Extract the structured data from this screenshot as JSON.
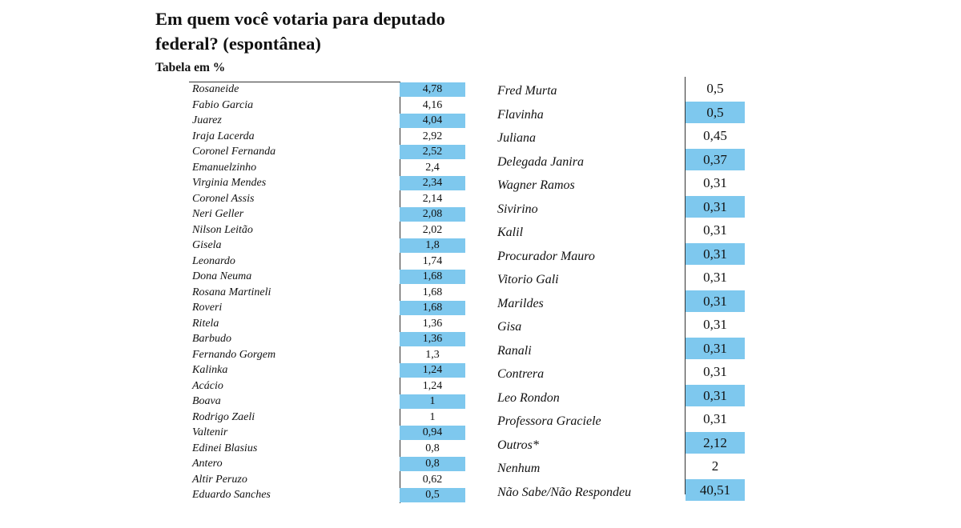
{
  "title": "Em quem você votaria para deputado federal? (espontânea)",
  "subtitle": "Tabela em %",
  "colors": {
    "highlight": "#7ec8ee",
    "text": "#111111",
    "background": "#ffffff"
  },
  "chart_data": {
    "type": "table",
    "title": "Em quem você votaria para deputado federal? (espontânea)",
    "subtitle": "Tabela em %",
    "columns": [
      {
        "rows": [
          {
            "name": "Rosaneide",
            "value": "4,78",
            "highlight": true
          },
          {
            "name": "Fabio Garcia",
            "value": "4,16",
            "highlight": false
          },
          {
            "name": "Juarez",
            "value": "4,04",
            "highlight": true
          },
          {
            "name": "Iraja Lacerda",
            "value": "2,92",
            "highlight": false
          },
          {
            "name": "Coronel Fernanda",
            "value": "2,52",
            "highlight": true
          },
          {
            "name": "Emanuelzinho",
            "value": "2,4",
            "highlight": false
          },
          {
            "name": "Virginia Mendes",
            "value": "2,34",
            "highlight": true
          },
          {
            "name": "Coronel Assis",
            "value": "2,14",
            "highlight": false
          },
          {
            "name": "Neri Geller",
            "value": "2,08",
            "highlight": true
          },
          {
            "name": "Nilson Leitão",
            "value": "2,02",
            "highlight": false
          },
          {
            "name": "Gisela",
            "value": "1,8",
            "highlight": true
          },
          {
            "name": "Leonardo",
            "value": "1,74",
            "highlight": false
          },
          {
            "name": "Dona Neuma",
            "value": "1,68",
            "highlight": true
          },
          {
            "name": "Rosana Martineli",
            "value": "1,68",
            "highlight": false
          },
          {
            "name": "Roveri",
            "value": "1,68",
            "highlight": true
          },
          {
            "name": "Ritela",
            "value": "1,36",
            "highlight": false
          },
          {
            "name": "Barbudo",
            "value": "1,36",
            "highlight": true
          },
          {
            "name": "Fernando Gorgem",
            "value": "1,3",
            "highlight": false
          },
          {
            "name": "Kalinka",
            "value": "1,24",
            "highlight": true
          },
          {
            "name": "Acácio",
            "value": "1,24",
            "highlight": false
          },
          {
            "name": "Boava",
            "value": "1",
            "highlight": true
          },
          {
            "name": "Rodrigo Zaeli",
            "value": "1",
            "highlight": false
          },
          {
            "name": "Valtenir",
            "value": "0,94",
            "highlight": true
          },
          {
            "name": "Edinei Blasius",
            "value": "0,8",
            "highlight": false
          },
          {
            "name": "Antero",
            "value": "0,8",
            "highlight": true
          },
          {
            "name": "Altir Peruzo",
            "value": "0,62",
            "highlight": false
          },
          {
            "name": "Eduardo Sanches",
            "value": "0,5",
            "highlight": true
          }
        ]
      },
      {
        "rows": [
          {
            "name": "Fred Murta",
            "value": "0,5",
            "highlight": false
          },
          {
            "name": "Flavinha",
            "value": "0,5",
            "highlight": true
          },
          {
            "name": "Juliana",
            "value": "0,45",
            "highlight": false
          },
          {
            "name": "Delegada Janira",
            "value": "0,37",
            "highlight": true
          },
          {
            "name": "Wagner Ramos",
            "value": "0,31",
            "highlight": false
          },
          {
            "name": "Sivirino",
            "value": "0,31",
            "highlight": true
          },
          {
            "name": "Kalil",
            "value": "0,31",
            "highlight": false
          },
          {
            "name": "Procurador Mauro",
            "value": "0,31",
            "highlight": true
          },
          {
            "name": "Vitorio Gali",
            "value": "0,31",
            "highlight": false
          },
          {
            "name": "Marildes",
            "value": "0,31",
            "highlight": true
          },
          {
            "name": "Gisa",
            "value": "0,31",
            "highlight": false
          },
          {
            "name": "Ranali",
            "value": "0,31",
            "highlight": true
          },
          {
            "name": "Contrera",
            "value": "0,31",
            "highlight": false
          },
          {
            "name": "Leo Rondon",
            "value": "0,31",
            "highlight": true
          },
          {
            "name": "Professora Graciele",
            "value": "0,31",
            "highlight": false
          },
          {
            "name": "Outros*",
            "value": "2,12",
            "highlight": true
          },
          {
            "name": "Nenhum",
            "value": "2",
            "highlight": false
          },
          {
            "name": "Não Sabe/Não Respondeu",
            "value": "40,51",
            "highlight": true
          }
        ]
      }
    ]
  }
}
